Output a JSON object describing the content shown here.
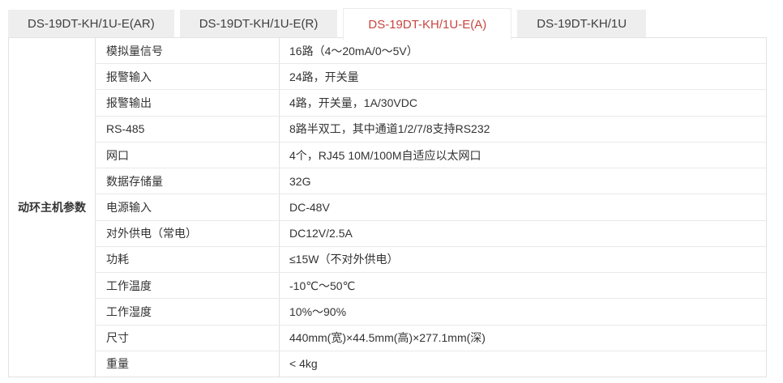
{
  "colors": {
    "accent_red": "#c8453f",
    "tab_inactive_bg": "#eeeeee",
    "table_border": "#e2e2e2",
    "text": "#333333"
  },
  "tabs": [
    {
      "label": "DS-19DT-KH/1U-E(AR)",
      "active": false
    },
    {
      "label": "DS-19DT-KH/1U-E(R)",
      "active": false
    },
    {
      "label": "DS-19DT-KH/1U-E(A)",
      "active": true
    },
    {
      "label": "DS-19DT-KH/1U",
      "active": false
    }
  ],
  "spec_table": {
    "group_label": "动环主机参数",
    "rows": [
      {
        "param": "模拟量信号",
        "value": "16路（4～20mA/0～5V）"
      },
      {
        "param": "报警输入",
        "value": "24路，开关量"
      },
      {
        "param": "报警输出",
        "value": "4路，开关量，1A/30VDC"
      },
      {
        "param": "RS-485",
        "value": "8路半双工，其中通道1/2/7/8支持RS232"
      },
      {
        "param": "网口",
        "value": "4个，RJ45 10M/100M自适应以太网口"
      },
      {
        "param": "数据存储量",
        "value": "32G"
      },
      {
        "param": "电源输入",
        "value": "DC-48V"
      },
      {
        "param": "对外供电（常电）",
        "value": "DC12V/2.5A"
      },
      {
        "param": "功耗",
        "value": "≤15W（不对外供电）"
      },
      {
        "param": "工作温度",
        "value": "-10℃～50℃"
      },
      {
        "param": "工作湿度",
        "value": "10%～90%"
      },
      {
        "param": "尺寸",
        "value": "440mm(宽)×44.5mm(高)×277.1mm(深)"
      },
      {
        "param": "重量",
        "value": "< 4kg"
      }
    ]
  }
}
